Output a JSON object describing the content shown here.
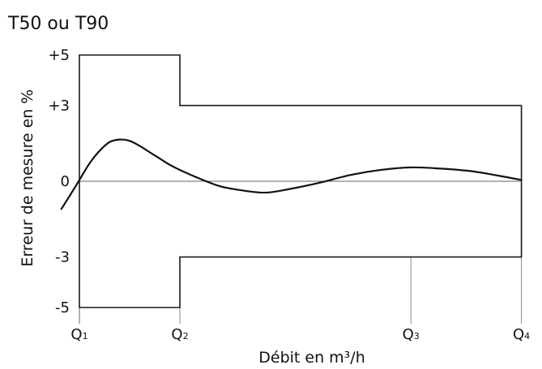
{
  "chart_data": {
    "type": "line",
    "title": "T50 ou T90",
    "ylabel": "Erreur de mesure en %",
    "xlabel": "Débit en m³/h",
    "ylim": [
      -5,
      5
    ],
    "yticks": [
      {
        "value": 5,
        "label": "+5"
      },
      {
        "value": 3,
        "label": "+3"
      },
      {
        "value": 0,
        "label": "0"
      },
      {
        "value": -3,
        "label": "-3"
      },
      {
        "value": -5,
        "label": "-5"
      }
    ],
    "x_markers": [
      {
        "pos": 0,
        "main": "Q",
        "sub": "1"
      },
      {
        "pos": 1,
        "main": "Q",
        "sub": "2"
      },
      {
        "pos": 3.3,
        "main": "Q",
        "sub": "3"
      },
      {
        "pos": 4.4,
        "main": "Q",
        "sub": "4"
      }
    ],
    "xlim": [
      -0.18,
      4.4
    ],
    "grid": false,
    "legend": "none",
    "limits": [
      {
        "x": 0,
        "y": 5
      },
      {
        "x": 1,
        "y": 5
      },
      {
        "x": 1,
        "y": 3
      },
      {
        "x": 4.4,
        "y": 3
      },
      {
        "x": 4.4,
        "y": -3
      },
      {
        "x": 1,
        "y": -3
      },
      {
        "x": 1,
        "y": -5
      },
      {
        "x": 0,
        "y": -5
      }
    ],
    "series": [
      {
        "values": [
          {
            "x": -0.18,
            "y": -1.1
          },
          {
            "x": -0.1,
            "y": -0.6
          },
          {
            "x": 0,
            "y": 0.05
          },
          {
            "x": 0.1,
            "y": 0.7
          },
          {
            "x": 0.2,
            "y": 1.2
          },
          {
            "x": 0.3,
            "y": 1.55
          },
          {
            "x": 0.4,
            "y": 1.65
          },
          {
            "x": 0.5,
            "y": 1.6
          },
          {
            "x": 0.6,
            "y": 1.4
          },
          {
            "x": 0.7,
            "y": 1.15
          },
          {
            "x": 0.8,
            "y": 0.9
          },
          {
            "x": 0.9,
            "y": 0.65
          },
          {
            "x": 1.0,
            "y": 0.45
          },
          {
            "x": 1.2,
            "y": 0.1
          },
          {
            "x": 1.4,
            "y": -0.2
          },
          {
            "x": 1.6,
            "y": -0.35
          },
          {
            "x": 1.85,
            "y": -0.45
          },
          {
            "x": 2.1,
            "y": -0.3
          },
          {
            "x": 2.4,
            "y": -0.05
          },
          {
            "x": 2.7,
            "y": 0.25
          },
          {
            "x": 3.0,
            "y": 0.45
          },
          {
            "x": 3.3,
            "y": 0.55
          },
          {
            "x": 3.6,
            "y": 0.5
          },
          {
            "x": 3.9,
            "y": 0.4
          },
          {
            "x": 4.2,
            "y": 0.2
          },
          {
            "x": 4.4,
            "y": 0.05
          }
        ]
      }
    ]
  }
}
